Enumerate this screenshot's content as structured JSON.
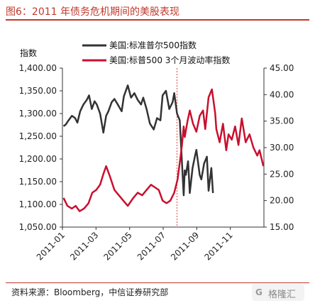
{
  "figure": {
    "title": "图6：2011 年债务危机期间的美股表现",
    "source": "资料来源：Bloomberg，中信证券研究部",
    "watermark": "格隆汇"
  },
  "chart_data": {
    "type": "line",
    "title": "",
    "ylabel_left": "指数",
    "ylabel_right": "",
    "x_tick_labels": [
      "2011-01",
      "2011-03",
      "2011-05",
      "2011-07",
      "2011-09",
      "2011-11"
    ],
    "x_range": [
      "2011-01-01",
      "2011-12-31"
    ],
    "ylim_left": [
      1050,
      1400
    ],
    "yticks_left": [
      "1,050.00",
      "1,100.00",
      "1,150.00",
      "1,200.00",
      "1,250.00",
      "1,300.00",
      "1,350.00",
      "1,400.00"
    ],
    "ylim_right": [
      15,
      45
    ],
    "yticks_right": [
      "15.00",
      "20.00",
      "25.00",
      "30.00",
      "35.00",
      "40.00",
      "45.00"
    ],
    "legend_position": "top",
    "annotations": [
      {
        "type": "vertical-dashed-line",
        "x": "2011-07-27",
        "color": "#e8453c"
      }
    ],
    "series": [
      {
        "name": "美国:标准普尔500指数",
        "axis": "left",
        "color": "#333333",
        "x": [
          "2011-01-03",
          "2011-01-07",
          "2011-01-12",
          "2011-01-18",
          "2011-01-24",
          "2011-01-28",
          "2011-02-02",
          "2011-02-08",
          "2011-02-14",
          "2011-02-18",
          "2011-02-23",
          "2011-02-28",
          "2011-03-04",
          "2011-03-10",
          "2011-03-16",
          "2011-03-21",
          "2011-03-25",
          "2011-03-31",
          "2011-04-05",
          "2011-04-11",
          "2011-04-18",
          "2011-04-22",
          "2011-04-29",
          "2011-05-05",
          "2011-05-11",
          "2011-05-17",
          "2011-05-23",
          "2011-05-27",
          "2011-06-02",
          "2011-06-08",
          "2011-06-15",
          "2011-06-21",
          "2011-06-27",
          "2011-07-01",
          "2011-07-07",
          "2011-07-13",
          "2011-07-19",
          "2011-07-22",
          "2011-07-27",
          "2011-08-01",
          "2011-08-04",
          "2011-08-08",
          "2011-08-10",
          "2011-08-12",
          "2011-08-16",
          "2011-08-19",
          "2011-08-24",
          "2011-08-29",
          "2011-08-31",
          "2011-09-06",
          "2011-09-09",
          "2011-09-14",
          "2011-09-19",
          "2011-09-22",
          "2011-09-27",
          "2011-09-30"
        ],
        "values": [
          1272,
          1276,
          1285,
          1295,
          1290,
          1280,
          1305,
          1320,
          1330,
          1340,
          1310,
          1327,
          1320,
          1300,
          1258,
          1295,
          1305,
          1325,
          1332,
          1320,
          1305,
          1338,
          1362,
          1335,
          1345,
          1330,
          1320,
          1335,
          1310,
          1278,
          1265,
          1290,
          1285,
          1340,
          1350,
          1310,
          1325,
          1345,
          1300,
          1285,
          1215,
          1120,
          1175,
          1165,
          1195,
          1125,
          1180,
          1210,
          1220,
          1165,
          1155,
          1190,
          1205,
          1130,
          1180,
          1125
        ]
      },
      {
        "name": "美国:标普500 3个月波动率指数",
        "axis": "right",
        "color": "#c8102e",
        "x": [
          "2011-01-03",
          "2011-01-10",
          "2011-01-18",
          "2011-01-25",
          "2011-02-01",
          "2011-02-09",
          "2011-02-17",
          "2011-02-24",
          "2011-03-03",
          "2011-03-10",
          "2011-03-16",
          "2011-03-21",
          "2011-03-28",
          "2011-04-05",
          "2011-04-13",
          "2011-04-21",
          "2011-04-29",
          "2011-05-09",
          "2011-05-17",
          "2011-05-25",
          "2011-06-02",
          "2011-06-10",
          "2011-06-17",
          "2011-06-24",
          "2011-07-01",
          "2011-07-08",
          "2011-07-15",
          "2011-07-22",
          "2011-07-28",
          "2011-08-02",
          "2011-08-05",
          "2011-08-08",
          "2011-08-10",
          "2011-08-15",
          "2011-08-19",
          "2011-08-25",
          "2011-08-31",
          "2011-09-06",
          "2011-09-12",
          "2011-09-16",
          "2011-09-22",
          "2011-09-28",
          "2011-10-04",
          "2011-10-06",
          "2011-10-12",
          "2011-10-18",
          "2011-10-24",
          "2011-10-28",
          "2011-11-03",
          "2011-11-09",
          "2011-11-15",
          "2011-11-21",
          "2011-11-28",
          "2011-12-05",
          "2011-12-12",
          "2011-12-19",
          "2011-12-23",
          "2011-12-30"
        ],
        "values": [
          20.5,
          19.0,
          18.5,
          19.0,
          18.0,
          18.5,
          19.5,
          21.5,
          22.0,
          23.0,
          25.0,
          26.5,
          24.5,
          22.0,
          21.0,
          20.0,
          19.0,
          20.5,
          21.5,
          21.0,
          22.0,
          23.0,
          22.5,
          22.0,
          20.0,
          19.5,
          20.0,
          21.5,
          24.0,
          28.0,
          30.5,
          34.0,
          32.0,
          35.0,
          37.0,
          34.5,
          33.0,
          36.0,
          37.0,
          33.5,
          39.5,
          41.0,
          36.5,
          33.5,
          31.0,
          34.5,
          29.5,
          32.5,
          31.5,
          34.0,
          30.5,
          35.5,
          31.0,
          32.5,
          30.0,
          28.5,
          29.5,
          26.5
        ]
      }
    ]
  }
}
